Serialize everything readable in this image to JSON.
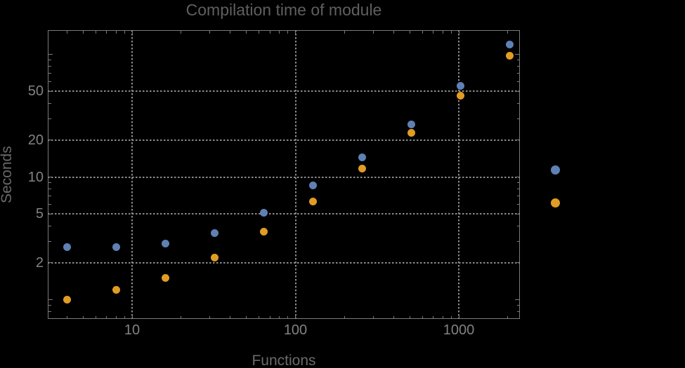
{
  "title": "Compilation time of module",
  "axes": {
    "x_label": "Functions",
    "y_label": "Seconds"
  },
  "colors": {
    "background": "#000000",
    "frame": "#7a7a7a",
    "gridline": "#8b8b8b",
    "title_text": "#5f5f5f",
    "axis_label_text": "#6a6a6a",
    "tick_label_text": "#828282",
    "series_blue": "#5E81B5",
    "series_orange": "#E19C24"
  },
  "chart_data": {
    "type": "scatter",
    "title": "Compilation time of module",
    "xlabel": "Functions",
    "ylabel": "Seconds",
    "x_scale": "log",
    "y_scale": "log",
    "x_range": [
      3.05,
      2370
    ],
    "y_range": [
      0.71,
      157
    ],
    "grid": "dotted gridlines at labeled major ticks",
    "legend_position": "right-of-frame, markers only, no visible labels",
    "x_tick_labels": [
      10,
      100,
      1000
    ],
    "y_tick_labels": [
      2,
      5,
      10,
      20,
      50
    ],
    "x": [
      4,
      8,
      16,
      32,
      64,
      128,
      256,
      512,
      1024,
      2048
    ],
    "series": [
      {
        "name": "blue",
        "color": "#5E81B5",
        "marker": "circle",
        "values": [
          2.7,
          2.7,
          2.85,
          3.5,
          5.1,
          8.5,
          14.5,
          27,
          55,
          121
        ]
      },
      {
        "name": "orange",
        "color": "#E19C24",
        "marker": "circle",
        "values": [
          1.0,
          1.2,
          1.5,
          2.2,
          3.6,
          6.3,
          11.7,
          23,
          46,
          98
        ]
      }
    ],
    "legend": {
      "entries": [
        {
          "series": "blue",
          "color": "#5E81B5"
        },
        {
          "series": "orange",
          "color": "#E19C24"
        }
      ],
      "labels_visible": false
    }
  }
}
